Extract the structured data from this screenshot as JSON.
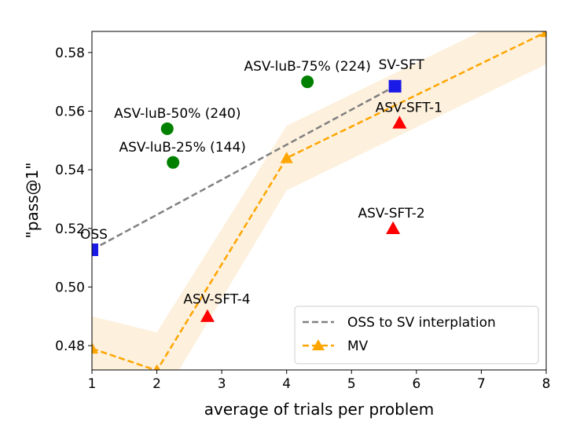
{
  "chart_data": {
    "type": "scatter",
    "title": "",
    "xlabel": "average of trials per problem",
    "ylabel": "\"pass@1\"",
    "xlim": [
      1,
      8
    ],
    "ylim": [
      0.4717,
      0.5872
    ],
    "xticks": [
      1,
      2,
      3,
      4,
      5,
      6,
      7,
      8
    ],
    "yticks": [
      0.48,
      0.5,
      0.52,
      0.54,
      0.56,
      0.58
    ],
    "ytick_labels": [
      "0.48",
      "0.50",
      "0.52",
      "0.54",
      "0.56",
      "0.58"
    ],
    "grid": false,
    "legend_position": "lower-right",
    "points": [
      {
        "label": "OSS",
        "x": 1.0,
        "y": 0.5127,
        "marker": "square",
        "color": "#1a1ae6"
      },
      {
        "label": "SV-SFT",
        "x": 5.67,
        "y": 0.5685,
        "marker": "square",
        "color": "#1a1ae6"
      },
      {
        "label": "ASV-luB-75% (224)",
        "x": 4.32,
        "y": 0.57,
        "marker": "circle",
        "color": "#008000"
      },
      {
        "label": "ASV-luB-50% (240)",
        "x": 2.16,
        "y": 0.554,
        "marker": "circle",
        "color": "#008000"
      },
      {
        "label": "ASV-luB-25% (144)",
        "x": 2.25,
        "y": 0.5425,
        "marker": "circle",
        "color": "#008000"
      },
      {
        "label": "ASV-SFT-1",
        "x": 5.74,
        "y": 0.556,
        "marker": "triangle",
        "color": "#ff0000"
      },
      {
        "label": "ASV-SFT-2",
        "x": 5.64,
        "y": 0.52,
        "marker": "triangle",
        "color": "#ff0000"
      },
      {
        "label": "ASV-SFT-4",
        "x": 2.78,
        "y": 0.49,
        "marker": "triangle",
        "color": "#ff0000"
      }
    ],
    "series": [
      {
        "name": "OSS to SV interplation",
        "x": [
          1.0,
          5.67
        ],
        "y": [
          0.5127,
          0.5685
        ],
        "color": "#808080",
        "style": "dashed"
      },
      {
        "name": "MV",
        "x": [
          1,
          2,
          4,
          8
        ],
        "y": [
          0.479,
          0.4715,
          0.544,
          0.587
        ],
        "lower": [
          0.468,
          0.459,
          0.533,
          0.576
        ],
        "upper": [
          0.49,
          0.4845,
          0.555,
          0.598
        ],
        "color": "#ffa500",
        "band_color": "#fdf0dc",
        "style": "dashed",
        "marker": "triangle"
      }
    ]
  }
}
